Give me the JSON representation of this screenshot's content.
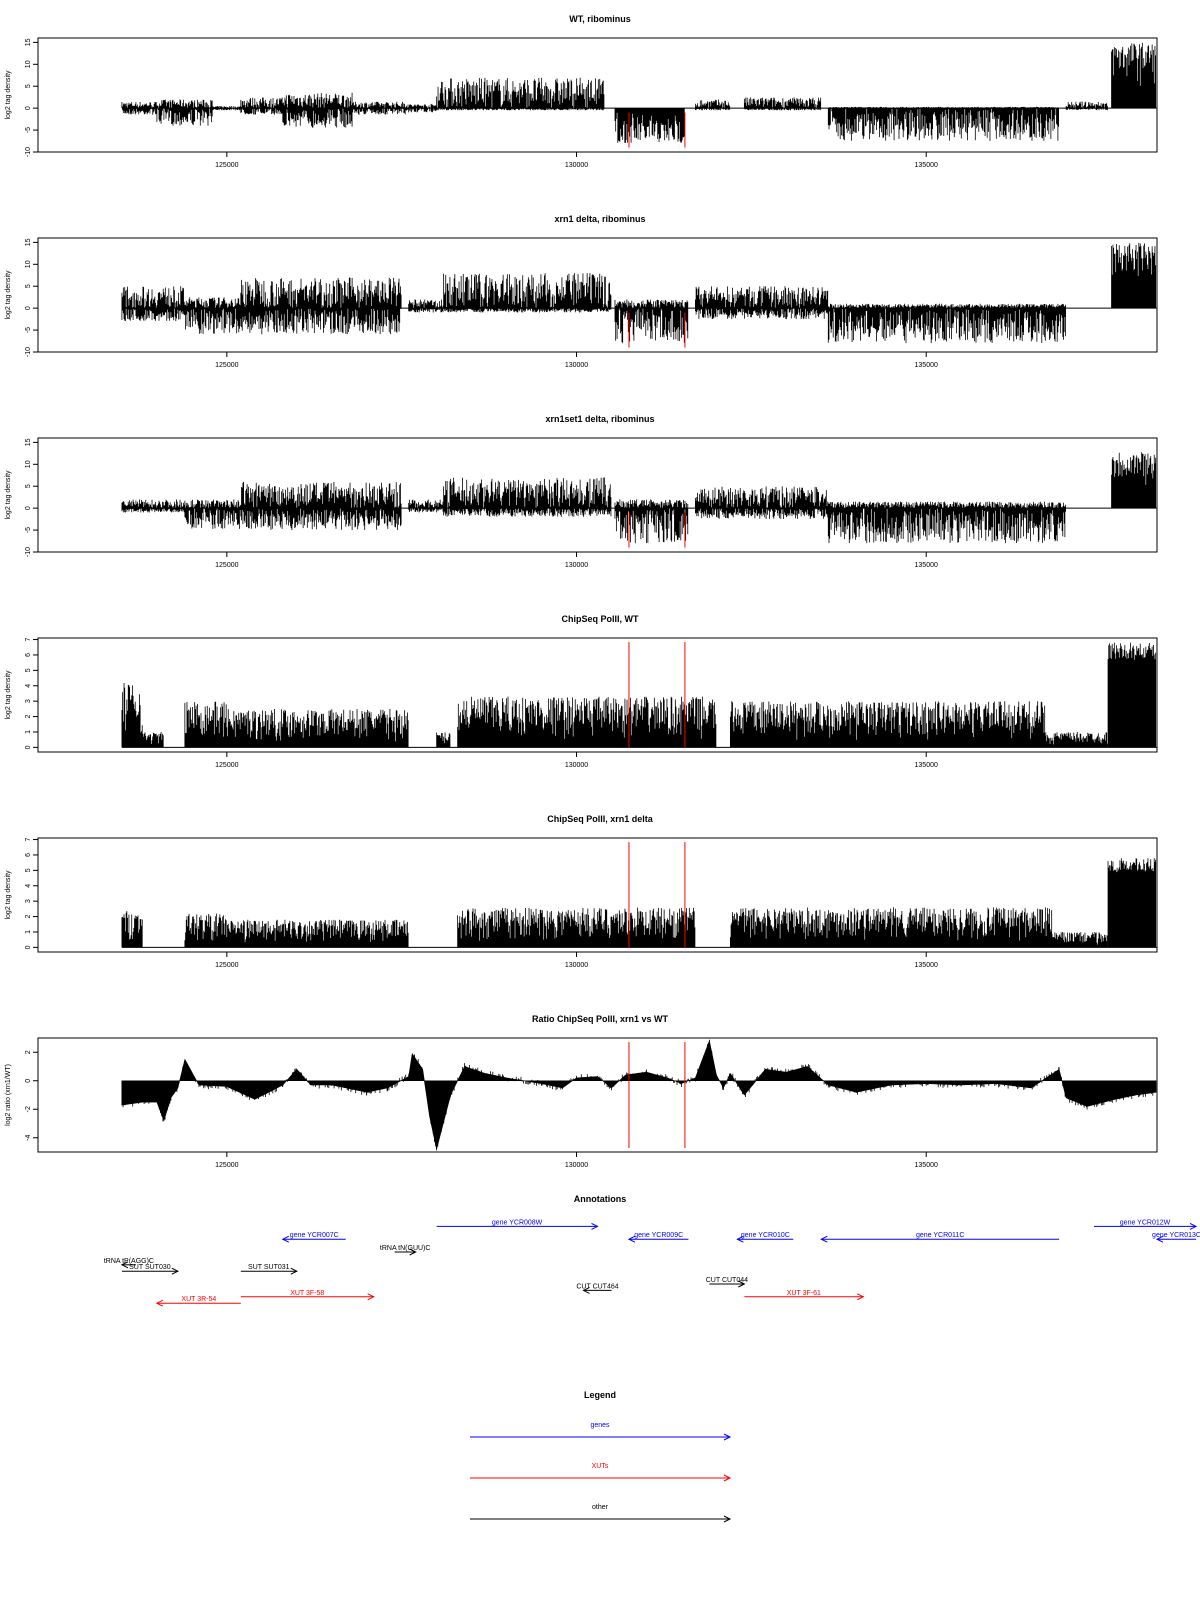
{
  "chart_data": [
    {
      "type": "area",
      "title": "WT, ribominus",
      "xlabel": "",
      "ylabel": "log2 tag density",
      "xlim": [
        122300,
        138300
      ],
      "ylim": [
        -10,
        16
      ],
      "yticks": [
        -10,
        -5,
        0,
        5,
        10,
        15
      ],
      "xticks": [
        125000,
        130000,
        135000
      ],
      "markers_x": [
        130750,
        131550
      ],
      "style": "signed",
      "segments": [
        {
          "start": 123500,
          "end": 124000,
          "min": -1.5,
          "max": 1.5
        },
        {
          "start": 124000,
          "end": 124800,
          "min": -4,
          "max": 2
        },
        {
          "start": 124800,
          "end": 125200,
          "min": -0.5,
          "max": 0.5
        },
        {
          "start": 125200,
          "end": 125800,
          "min": -1.5,
          "max": 2.5
        },
        {
          "start": 125800,
          "end": 126800,
          "min": -4.5,
          "max": 3.5
        },
        {
          "start": 126800,
          "end": 127600,
          "min": -1.5,
          "max": 1.5
        },
        {
          "start": 127600,
          "end": 128000,
          "min": -1,
          "max": 1
        },
        {
          "start": 128000,
          "end": 130400,
          "min": -0.5,
          "max": 7
        },
        {
          "start": 130550,
          "end": 131550,
          "min": -8,
          "max": -0.3
        },
        {
          "start": 131700,
          "end": 132200,
          "min": -0.5,
          "max": 2
        },
        {
          "start": 132400,
          "end": 133500,
          "min": -0.5,
          "max": 2.5
        },
        {
          "start": 133600,
          "end": 136900,
          "min": -7.5,
          "max": 0.3
        },
        {
          "start": 137000,
          "end": 137600,
          "min": -0.5,
          "max": 1.5
        },
        {
          "start": 137650,
          "end": 138650,
          "min": 5,
          "max": 15
        }
      ]
    },
    {
      "type": "area",
      "title": "xrn1 delta, ribominus",
      "xlabel": "",
      "ylabel": "log2 tag density",
      "xlim": [
        122300,
        138300
      ],
      "ylim": [
        -10,
        16
      ],
      "yticks": [
        -10,
        -5,
        0,
        5,
        10,
        15
      ],
      "xticks": [
        125000,
        130000,
        135000
      ],
      "markers_x": [
        130750,
        131550
      ],
      "style": "signed",
      "segments": [
        {
          "start": 123500,
          "end": 124400,
          "min": -3,
          "max": 5
        },
        {
          "start": 124400,
          "end": 125200,
          "min": -6,
          "max": 2.5
        },
        {
          "start": 125200,
          "end": 127500,
          "min": -6,
          "max": 7
        },
        {
          "start": 127600,
          "end": 128100,
          "min": -1,
          "max": 2
        },
        {
          "start": 128100,
          "end": 130500,
          "min": -1,
          "max": 8
        },
        {
          "start": 130550,
          "end": 131600,
          "min": -8,
          "max": 2
        },
        {
          "start": 131700,
          "end": 133600,
          "min": -2.5,
          "max": 5
        },
        {
          "start": 133600,
          "end": 137000,
          "min": -8,
          "max": 1
        },
        {
          "start": 137650,
          "end": 138650,
          "min": 5,
          "max": 15
        }
      ]
    },
    {
      "type": "area",
      "title": "xrn1set1 delta, ribominus",
      "xlabel": "",
      "ylabel": "log2 tag density",
      "xlim": [
        122300,
        138300
      ],
      "ylim": [
        -10,
        16
      ],
      "yticks": [
        -10,
        -5,
        0,
        5,
        10,
        15
      ],
      "xticks": [
        125000,
        130000,
        135000
      ],
      "markers_x": [
        130750,
        131550
      ],
      "style": "signed",
      "segments": [
        {
          "start": 123500,
          "end": 124400,
          "min": -1,
          "max": 2
        },
        {
          "start": 124400,
          "end": 125200,
          "min": -5,
          "max": 2
        },
        {
          "start": 125200,
          "end": 127500,
          "min": -5,
          "max": 6
        },
        {
          "start": 127600,
          "end": 128100,
          "min": -1,
          "max": 2
        },
        {
          "start": 128100,
          "end": 130500,
          "min": -2,
          "max": 7
        },
        {
          "start": 130550,
          "end": 131600,
          "min": -8,
          "max": 2
        },
        {
          "start": 131700,
          "end": 133600,
          "min": -2.5,
          "max": 5
        },
        {
          "start": 133600,
          "end": 137000,
          "min": -8,
          "max": 1.5
        },
        {
          "start": 137650,
          "end": 138650,
          "min": 5,
          "max": 13
        }
      ]
    },
    {
      "type": "area",
      "title": "ChipSeq PolII, WT",
      "xlabel": "",
      "ylabel": "log2 tag density",
      "xlim": [
        122300,
        138300
      ],
      "ylim": [
        -0.3,
        7.1
      ],
      "yticks": [
        0,
        1,
        2,
        3,
        4,
        5,
        6,
        7
      ],
      "xticks": [
        125000,
        130000,
        135000
      ],
      "markers_x": [
        130750,
        131550
      ],
      "style": "positive",
      "segments": [
        {
          "start": 123500,
          "end": 123800,
          "min": 0,
          "max": 4.2
        },
        {
          "start": 123800,
          "end": 124100,
          "min": 0,
          "max": 1
        },
        {
          "start": 124400,
          "end": 125000,
          "min": 0,
          "max": 3
        },
        {
          "start": 125000,
          "end": 127600,
          "min": 0,
          "max": 2.5
        },
        {
          "start": 128000,
          "end": 128200,
          "min": 0,
          "max": 1
        },
        {
          "start": 128300,
          "end": 132000,
          "min": 0,
          "max": 3.3
        },
        {
          "start": 132200,
          "end": 136700,
          "min": 0,
          "max": 3
        },
        {
          "start": 136700,
          "end": 137600,
          "min": 0,
          "max": 1
        },
        {
          "start": 137600,
          "end": 138650,
          "min": 4,
          "max": 6.8
        }
      ]
    },
    {
      "type": "area",
      "title": "ChipSeq PolII, xrn1 delta",
      "xlabel": "",
      "ylabel": "log2 tag density",
      "xlim": [
        122300,
        138300
      ],
      "ylim": [
        -0.3,
        7.1
      ],
      "yticks": [
        0,
        1,
        2,
        3,
        4,
        5,
        6,
        7
      ],
      "xticks": [
        125000,
        130000,
        135000
      ],
      "markers_x": [
        130750,
        131550
      ],
      "style": "positive",
      "segments": [
        {
          "start": 123500,
          "end": 123800,
          "min": 0,
          "max": 2.4
        },
        {
          "start": 124400,
          "end": 125000,
          "min": 0,
          "max": 2.2
        },
        {
          "start": 125000,
          "end": 127600,
          "min": 0,
          "max": 1.8
        },
        {
          "start": 128300,
          "end": 131700,
          "min": 0,
          "max": 2.6
        },
        {
          "start": 132200,
          "end": 136800,
          "min": 0,
          "max": 2.6
        },
        {
          "start": 136800,
          "end": 137600,
          "min": 0,
          "max": 1
        },
        {
          "start": 137600,
          "end": 138650,
          "min": 3.5,
          "max": 5.8
        }
      ]
    },
    {
      "type": "area",
      "title": "Ratio ChipSeq PolII, xrn1 vs WT",
      "xlabel": "",
      "ylabel": "log2 ratio (xrn1/WT)",
      "xlim": [
        122300,
        138300
      ],
      "ylim": [
        -5,
        3
      ],
      "yticks": [
        -4,
        -2,
        0,
        2
      ],
      "xticks": [
        125000,
        130000,
        135000
      ],
      "markers_x": [
        130750,
        131550
      ],
      "style": "ratio",
      "x": [
        123500,
        123800,
        124000,
        124100,
        124200,
        124300,
        124400,
        124600,
        125000,
        125400,
        125800,
        126000,
        126200,
        126500,
        127000,
        127300,
        127600,
        127650,
        127800,
        127900,
        128000,
        128200,
        128400,
        128700,
        129000,
        129500,
        129800,
        130000,
        130300,
        130500,
        130700,
        131000,
        131300,
        131500,
        131700,
        131900,
        132000,
        132100,
        132200,
        132400,
        132700,
        133000,
        133300,
        133600,
        134000,
        134500,
        135000,
        135500,
        136000,
        136500,
        136900,
        137000,
        137300,
        137700,
        138000,
        138650
      ],
      "y": [
        -1.7,
        -1.5,
        -1.5,
        -2.8,
        -1.2,
        -0.5,
        1.5,
        -0.3,
        -0.4,
        -1.3,
        -0.3,
        0.8,
        -0.3,
        -0.3,
        -0.8,
        -0.5,
        0.3,
        1.9,
        0.8,
        -2.5,
        -4.8,
        -1.0,
        1.0,
        0.5,
        0.2,
        -0.2,
        -0.5,
        0.2,
        0.3,
        -0.5,
        0.4,
        0.6,
        0.2,
        -0.2,
        0.2,
        2.8,
        0.4,
        -0.5,
        0.5,
        -1.0,
        0.8,
        0.6,
        1.0,
        -0.3,
        -0.8,
        -0.3,
        -0.2,
        -0.3,
        -0.2,
        -0.5,
        0.8,
        -1.2,
        -1.8,
        -1.3,
        -1.0,
        -0.8
      ]
    }
  ],
  "annotations": {
    "title": "Annotations",
    "features": [
      {
        "label": "gene YCR007C",
        "strand": "-",
        "start": 125800,
        "end": 126700,
        "row": 3,
        "color": "#0000ff"
      },
      {
        "label": "gene YCR008W",
        "strand": "+",
        "start": 128000,
        "end": 130300,
        "row": 1,
        "color": "#0000ff"
      },
      {
        "label": "gene YCR009C",
        "strand": "-",
        "start": 130750,
        "end": 131600,
        "row": 3,
        "color": "#0000ff"
      },
      {
        "label": "gene YCR010C",
        "strand": "-",
        "start": 132300,
        "end": 133100,
        "row": 3,
        "color": "#0000ff"
      },
      {
        "label": "gene YCR011C",
        "strand": "-",
        "start": 133500,
        "end": 136900,
        "row": 3,
        "color": "#0000ff"
      },
      {
        "label": "gene YCR012W",
        "strand": "+",
        "start": 137400,
        "end": 139100,
        "row": 1,
        "color": "#0000ff"
      },
      {
        "label": "gene YCR013C",
        "strand": "-",
        "start": 138300,
        "end": 139100,
        "row": 3,
        "color": "#0000ff"
      },
      {
        "label": "tRNA tP(AGG)C",
        "strand": "-",
        "start": 123500,
        "end": 123700,
        "row": 7,
        "color": "#000000"
      },
      {
        "label": "SUT SUT030",
        "strand": "+",
        "start": 123500,
        "end": 124300,
        "row": 8,
        "color": "#000000"
      },
      {
        "label": "SUT SUT031",
        "strand": "+",
        "start": 125200,
        "end": 126000,
        "row": 8,
        "color": "#000000"
      },
      {
        "label": "tRNA tN(GUU)C",
        "strand": "+",
        "start": 127400,
        "end": 127700,
        "row": 5,
        "color": "#000000"
      },
      {
        "label": "CUT CUT464",
        "strand": "-",
        "start": 130100,
        "end": 130500,
        "row": 11,
        "color": "#000000"
      },
      {
        "label": "CUT CUT044",
        "strand": "+",
        "start": 131900,
        "end": 132400,
        "row": 10,
        "color": "#000000"
      },
      {
        "label": "XUT 3F-58",
        "strand": "+",
        "start": 125200,
        "end": 127100,
        "row": 12,
        "color": "#ff0000"
      },
      {
        "label": "XUT 3F-61",
        "strand": "+",
        "start": 132400,
        "end": 134100,
        "row": 12,
        "color": "#ff0000"
      },
      {
        "label": "XUT 3R-54",
        "strand": "-",
        "start": 124000,
        "end": 125200,
        "row": 13,
        "color": "#ff0000"
      }
    ]
  },
  "legend": {
    "title": "Legend",
    "items": [
      {
        "label": "genes",
        "color": "#0000ff"
      },
      {
        "label": "XUTs",
        "color": "#ff0000"
      },
      {
        "label": "other",
        "color": "#000000"
      }
    ]
  }
}
